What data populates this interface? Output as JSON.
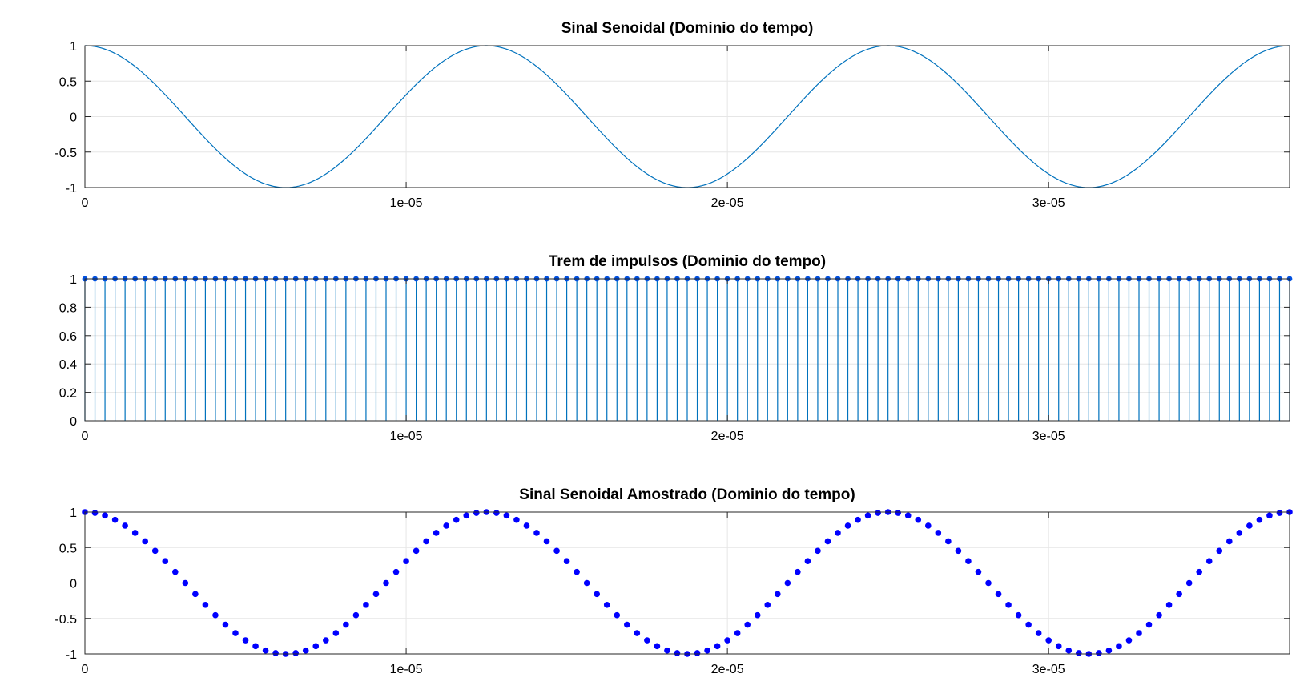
{
  "chart_data": [
    {
      "type": "line",
      "title": "Sinal Senoidal (Dominio do tempo)",
      "xlabel": "",
      "ylabel": "",
      "xlim": [
        0,
        3.75e-05
      ],
      "ylim": [
        -1,
        1
      ],
      "x_ticks": [
        0,
        1e-05,
        2e-05,
        3e-05
      ],
      "x_tick_labels": [
        "0",
        "1e-05",
        "2e-05",
        "3e-05"
      ],
      "y_ticks": [
        1,
        0.5,
        0,
        -0.5,
        -1
      ],
      "y_tick_labels": [
        "1",
        "0.5",
        "0",
        "-0.5",
        "-1"
      ],
      "grid": true,
      "series": [
        {
          "function": "cos",
          "amplitude": 1,
          "frequency_hz": 80000,
          "x_start": 0,
          "x_end": 3.75e-05,
          "color": "#0072BD"
        }
      ]
    },
    {
      "type": "stem",
      "title": "Trem de impulsos (Dominio do tempo)",
      "xlabel": "",
      "ylabel": "",
      "xlim": [
        0,
        3.75e-05
      ],
      "ylim": [
        0,
        1
      ],
      "x_ticks": [
        0,
        1e-05,
        2e-05,
        3e-05
      ],
      "x_tick_labels": [
        "0",
        "1e-05",
        "2e-05",
        "3e-05"
      ],
      "y_ticks": [
        1,
        0.8,
        0.6,
        0.4,
        0.2,
        0
      ],
      "y_tick_labels": [
        "1",
        "0.8",
        "0.6",
        "0.4",
        "0.2",
        "0"
      ],
      "grid": true,
      "series": [
        {
          "x_start": 0,
          "x_step": 3.125e-07,
          "x_end": 3.75e-05,
          "value": 1,
          "color": "#0072BD",
          "marker_color": "#0050E0"
        }
      ]
    },
    {
      "type": "scatter",
      "title": "Sinal Senoidal Amostrado (Dominio do tempo)",
      "xlabel": "",
      "ylabel": "",
      "xlim": [
        0,
        3.75e-05
      ],
      "ylim": [
        -1,
        1
      ],
      "x_ticks": [
        0,
        1e-05,
        2e-05,
        3e-05
      ],
      "x_tick_labels": [
        "0",
        "1e-05",
        "2e-05",
        "3e-05"
      ],
      "y_ticks": [
        1,
        0.5,
        0,
        -0.5,
        -1
      ],
      "y_tick_labels": [
        "1",
        "0.5",
        "0",
        "-0.5",
        "-1"
      ],
      "grid": true,
      "zero_line": true,
      "series": [
        {
          "function": "cos",
          "amplitude": 1,
          "frequency_hz": 80000,
          "x_start": 0,
          "x_step": 3.125e-07,
          "x_end": 3.75e-05,
          "color": "#0000FF"
        }
      ]
    }
  ]
}
